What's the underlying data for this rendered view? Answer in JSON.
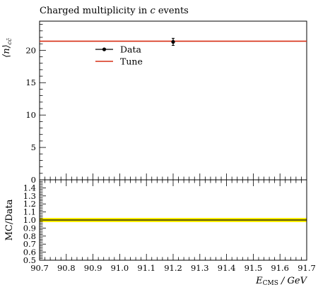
{
  "chart_data": {
    "type": "scatter",
    "title_prefix": "Charged multiplicity in ",
    "title_flavour": "c",
    "title_suffix": " events",
    "ylabel_main": "⟨n⟩",
    "ylabel_main_sub": "cc̄",
    "ylabel_ratio": "MC/Data",
    "xlabel_main": "E",
    "xlabel_sub": "CMS",
    "xlabel_unit": " / GeV",
    "xlim": [
      90.7,
      91.7
    ],
    "ylim_main": [
      0,
      24.5
    ],
    "ylim_ratio": [
      0.5,
      1.5
    ],
    "x_ticks": [
      "90.7",
      "90.8",
      "90.9",
      "91.0",
      "91.1",
      "91.2",
      "91.3",
      "91.4",
      "91.5",
      "91.6",
      "91.7"
    ],
    "y_ticks_main": [
      "0",
      "5",
      "10",
      "15",
      "20"
    ],
    "y_ticks_ratio": [
      "0.5",
      "0.6",
      "0.7",
      "0.8",
      "0.9",
      "1.0",
      "1.1",
      "1.2",
      "1.3",
      "1.4"
    ],
    "legend_position": "top-left",
    "series": [
      {
        "name": "Data",
        "kind": "points",
        "color": "#000000",
        "x": [
          91.2
        ],
        "y": [
          21.3
        ],
        "yerr": [
          0.55
        ]
      },
      {
        "name": "Tune",
        "kind": "line",
        "color": "#d62e14",
        "x": [
          90.7,
          91.7
        ],
        "y": [
          21.4,
          21.4
        ]
      }
    ],
    "ratio": {
      "band_low": 0.974,
      "band_high": 1.026,
      "band_color": "#ffee00",
      "tune_ratio": 1.0,
      "line_color": "#000000"
    }
  }
}
